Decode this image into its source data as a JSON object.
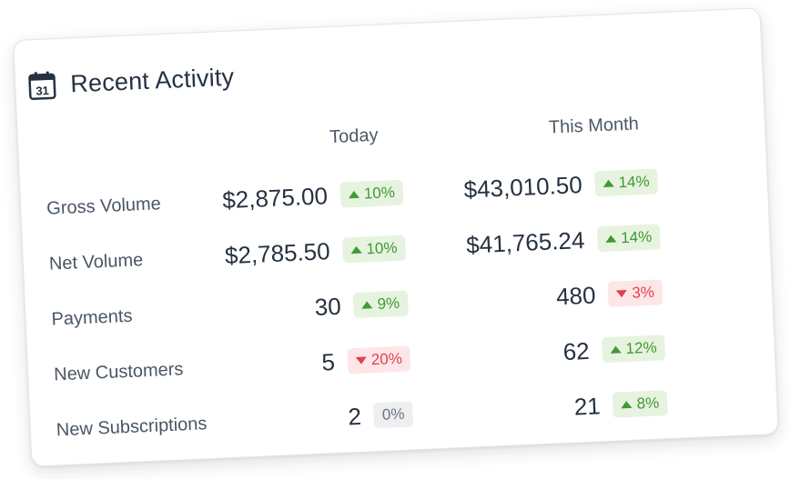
{
  "card": {
    "title": "Recent Activity",
    "icon": "calendar-icon",
    "icon_day": "31"
  },
  "columns": {
    "today": "Today",
    "month": "This Month"
  },
  "rows": [
    {
      "label": "Gross  Volume",
      "today": {
        "value": "$2,875.00",
        "change": "10%",
        "trend": "up"
      },
      "month": {
        "value": "$43,010.50",
        "change": "14%",
        "trend": "up"
      }
    },
    {
      "label": "Net  Volume",
      "today": {
        "value": "$2,785.50",
        "change": "10%",
        "trend": "up"
      },
      "month": {
        "value": "$41,765.24",
        "change": "14%",
        "trend": "up"
      }
    },
    {
      "label": "Payments",
      "today": {
        "value": "30",
        "change": "9%",
        "trend": "up"
      },
      "month": {
        "value": "480",
        "change": "3%",
        "trend": "down"
      }
    },
    {
      "label": "New Customers",
      "today": {
        "value": "5",
        "change": "20%",
        "trend": "down"
      },
      "month": {
        "value": "62",
        "change": "12%",
        "trend": "up"
      }
    },
    {
      "label": "New Subscriptions",
      "today": {
        "value": "2",
        "change": "0%",
        "trend": "flat"
      },
      "month": {
        "value": "21",
        "change": "8%",
        "trend": "up"
      }
    }
  ],
  "colors": {
    "up_text": "#3f9a34",
    "up_bg": "#e6f3df",
    "down_text": "#e0414f",
    "down_bg": "#fde6e8",
    "flat_text": "#6b7480",
    "flat_bg": "#eeeff1"
  }
}
